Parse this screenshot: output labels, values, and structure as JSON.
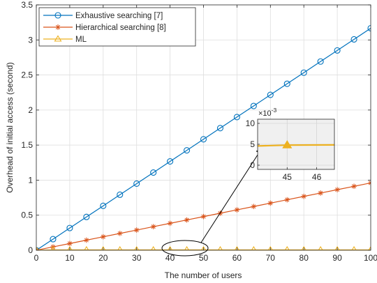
{
  "chart_data": {
    "type": "line",
    "xlabel": "The number of users",
    "ylabel": "Overhead of initial access (second)",
    "xlim": [
      0,
      100
    ],
    "ylim": [
      0,
      3.5
    ],
    "xticks": [
      "0",
      "10",
      "20",
      "30",
      "40",
      "50",
      "60",
      "70",
      "80",
      "90",
      "100"
    ],
    "yticks": [
      "0",
      "0.5",
      "1",
      "1.5",
      "2",
      "2.5",
      "3",
      "3.5"
    ],
    "grid": true,
    "legend_position": "top-left",
    "x": [
      0,
      5,
      10,
      15,
      20,
      25,
      30,
      35,
      40,
      45,
      50,
      55,
      60,
      65,
      70,
      75,
      80,
      85,
      90,
      95,
      100
    ],
    "series": [
      {
        "name": "Exhaustive searching [7]",
        "color": "#0072BD",
        "marker": "circle",
        "values": [
          0,
          0.158,
          0.317,
          0.475,
          0.633,
          0.792,
          0.95,
          1.108,
          1.267,
          1.425,
          1.583,
          1.742,
          1.9,
          2.058,
          2.217,
          2.375,
          2.533,
          2.692,
          2.85,
          3.008,
          3.167
        ]
      },
      {
        "name": "Hierarchical searching [8]",
        "color": "#D95319",
        "marker": "asterisk",
        "values": [
          0,
          0.048,
          0.096,
          0.144,
          0.192,
          0.24,
          0.288,
          0.336,
          0.384,
          0.432,
          0.48,
          0.528,
          0.576,
          0.624,
          0.672,
          0.72,
          0.768,
          0.816,
          0.864,
          0.912,
          0.96
        ]
      },
      {
        "name": "ML",
        "color": "#EDB120",
        "marker": "triangle",
        "values": [
          0,
          0.0048,
          0.0048,
          0.0048,
          0.0048,
          0.0048,
          0.0048,
          0.0048,
          0.0048,
          0.0048,
          0.0048,
          0.0048,
          0.0048,
          0.0048,
          0.0048,
          0.0048,
          0.0048,
          0.0048,
          0.0048,
          0.0048,
          0.0048
        ]
      }
    ],
    "inset": {
      "xlim": [
        44,
        46.6
      ],
      "ylim": [
        -1,
        11
      ],
      "xticks": [
        "45",
        "46"
      ],
      "yticks": [
        "0",
        "5",
        "10"
      ],
      "exponent": "×10",
      "exponent_power": "-3",
      "x": [
        44,
        45,
        46.6
      ],
      "values": [
        4.6,
        4.8,
        4.85
      ],
      "marker_x": 45,
      "marker_y": 4.8,
      "grid": true
    }
  }
}
